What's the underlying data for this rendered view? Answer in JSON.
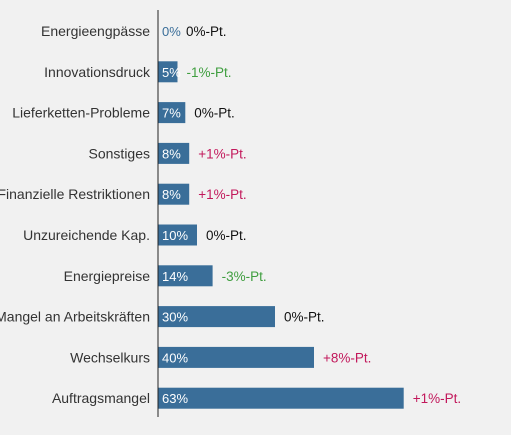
{
  "chart_data": {
    "type": "bar",
    "orientation": "horizontal",
    "categories": [
      "Energieengpässe",
      "Innovationsdruck",
      "Lieferketten-Probleme",
      "Sonstiges",
      "Finanzielle Restriktionen",
      "Unzureichende Kap.",
      "Energiepreise",
      "Mangel an Arbeitskräften",
      "Wechselkurs",
      "Auftragsmangel"
    ],
    "values": [
      0,
      5,
      7,
      8,
      8,
      10,
      14,
      30,
      40,
      63
    ],
    "value_labels": [
      "0%",
      "5%",
      "7%",
      "8%",
      "8%",
      "10%",
      "14%",
      "30%",
      "40%",
      "63%"
    ],
    "changes": [
      "0%-Pt.",
      "-1%-Pt.",
      "0%-Pt.",
      "+1%-Pt.",
      "+1%-Pt.",
      "0%-Pt.",
      "-3%-Pt.",
      "0%-Pt.",
      "+8%-Pt.",
      "+1%-Pt."
    ],
    "xlim": [
      0,
      63
    ],
    "grid": false,
    "colors": {
      "bar": "#3a6e99",
      "background": "#f1f1f1",
      "axis": "#222222",
      "value_label_inside": "#ffffff",
      "value_label_outside": "#3a6e99",
      "change_positive": "#c2185b",
      "change_negative": "#3f9e3f",
      "change_neutral": "#111111"
    }
  }
}
